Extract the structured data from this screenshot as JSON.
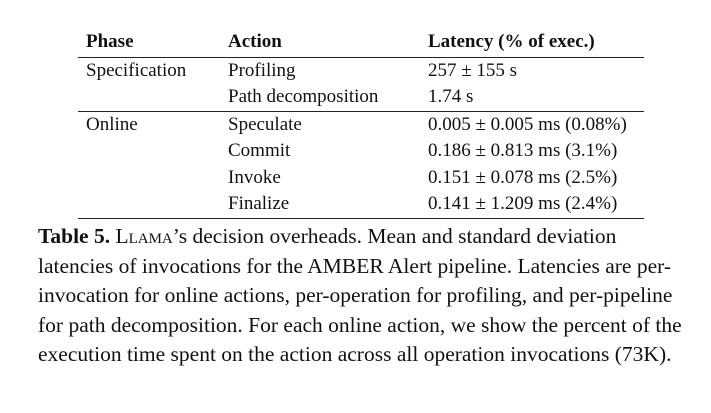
{
  "table": {
    "headers": [
      "Phase",
      "Action",
      "Latency (% of exec.)"
    ],
    "groups": [
      {
        "phase": "Specification",
        "rows": [
          {
            "action": "Profiling",
            "latency": "257 ± 155 s"
          },
          {
            "action": "Path decomposition",
            "latency": "1.74 s"
          }
        ]
      },
      {
        "phase": "Online",
        "rows": [
          {
            "action": "Speculate",
            "latency": "0.005 ± 0.005 ms (0.08%)"
          },
          {
            "action": "Commit",
            "latency": "0.186 ± 0.813 ms (3.1%)"
          },
          {
            "action": "Invoke",
            "latency": "0.151 ± 0.078 ms (2.5%)"
          },
          {
            "action": "Finalize",
            "latency": "0.141 ± 1.209 ms (2.4%)"
          }
        ]
      }
    ]
  },
  "caption": {
    "label": "Table 5.",
    "system_name": "Llama",
    "text": "’s decision overheads. Mean and standard deviation latencies of invocations for the AMBER Alert pipeline. Latencies are per-invocation for online actions, per-operation for profiling, and per-pipeline for path decomposition. For each online action, we show the percent of the execution time spent on the action across all operation invocations (73K)."
  }
}
